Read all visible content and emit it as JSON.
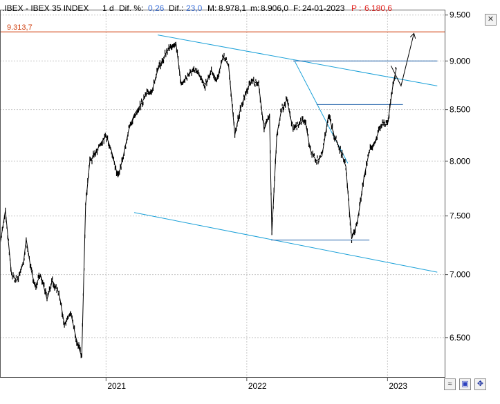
{
  "header": {
    "ticker": ".IBEX - IBEX 35 INDEX",
    "period": "1 d",
    "dif_pct_label": "Dif. %:",
    "dif_pct_value": "0,26",
    "dif_label": "Dif.:",
    "dif_value": "23,0",
    "max_label": "M:",
    "max_value": "8.978,1",
    "min_label": "m:",
    "min_value": "8.906,0",
    "date_label": "F:",
    "date_value": "24-01-2023",
    "p_label": "P :",
    "p_value": "6.180,6"
  },
  "colors": {
    "price": "#000000",
    "trendline": "#1aa0d8",
    "level": "#1f5fa8",
    "resistance": "#d04010",
    "header_blue": "#3a6fd8",
    "header_red": "#e0201c"
  },
  "icons": {
    "corner_top": "close-box-icon",
    "bottom_1": "wave-icon",
    "bottom_2": "floppy-save-icon",
    "bottom_3": "crossed-arrows-icon"
  },
  "chart_data": {
    "type": "line",
    "title": "",
    "xlabel": "",
    "ylabel": "",
    "ylim": [
      6200,
      9560
    ],
    "xlim": [
      "2020-04-01",
      "2023-05-31"
    ],
    "grid": true,
    "legend": "none",
    "y_ticks": [
      {
        "value": 6500,
        "label": "6.500"
      },
      {
        "value": 7000,
        "label": "7.000"
      },
      {
        "value": 7500,
        "label": "7.500"
      },
      {
        "value": 8000,
        "label": "8.000"
      },
      {
        "value": 8500,
        "label": "8.500"
      },
      {
        "value": 9000,
        "label": "9.000"
      },
      {
        "value": 9500,
        "label": "9.500"
      }
    ],
    "x_ticks": [
      {
        "date": "2021-01-01",
        "label": "2021"
      },
      {
        "date": "2022-01-01",
        "label": "2022"
      },
      {
        "date": "2023-01-01",
        "label": "2023"
      }
    ],
    "resistance_level": {
      "value": 9313.7,
      "label": "9.313,7"
    },
    "series": [
      {
        "x": [
          "2020-04-01",
          "2020-04-15",
          "2020-05-01",
          "2020-05-15",
          "2020-06-01",
          "2020-06-08",
          "2020-06-20",
          "2020-07-01",
          "2020-07-15",
          "2020-08-01",
          "2020-08-15",
          "2020-09-01",
          "2020-09-15",
          "2020-10-01",
          "2020-10-15",
          "2020-10-30",
          "2020-11-09",
          "2020-11-20",
          "2020-12-01",
          "2020-12-15",
          "2021-01-01",
          "2021-01-15",
          "2021-02-01",
          "2021-02-15",
          "2021-03-01",
          "2021-03-15",
          "2021-04-01",
          "2021-04-15",
          "2021-05-01",
          "2021-05-15",
          "2021-06-01",
          "2021-06-15",
          "2021-07-01",
          "2021-07-15",
          "2021-08-01",
          "2021-08-15",
          "2021-09-01",
          "2021-09-15",
          "2021-10-01",
          "2021-10-15",
          "2021-11-01",
          "2021-11-15",
          "2021-12-01",
          "2021-12-15",
          "2022-01-01",
          "2022-01-15",
          "2022-02-01",
          "2022-02-15",
          "2022-03-01",
          "2022-03-07",
          "2022-03-20",
          "2022-04-01",
          "2022-04-15",
          "2022-05-01",
          "2022-05-15",
          "2022-06-01",
          "2022-06-15",
          "2022-07-01",
          "2022-07-15",
          "2022-08-01",
          "2022-08-15",
          "2022-09-01",
          "2022-09-15",
          "2022-09-30",
          "2022-10-15",
          "2022-11-01",
          "2022-11-15",
          "2022-12-01",
          "2022-12-15",
          "2023-01-01",
          "2023-01-15",
          "2023-01-24"
        ],
        "y": [
          7250,
          7550,
          7000,
          6950,
          7100,
          7300,
          7050,
          6900,
          7000,
          6800,
          6950,
          6850,
          6600,
          6700,
          6500,
          6350,
          7600,
          8000,
          8050,
          8150,
          8250,
          8100,
          7850,
          8050,
          8300,
          8450,
          8550,
          8650,
          8700,
          8900,
          9050,
          9150,
          9200,
          8750,
          8850,
          8900,
          8850,
          8750,
          8900,
          8800,
          9050,
          8950,
          8250,
          8500,
          8700,
          8800,
          8750,
          8300,
          8450,
          7350,
          8250,
          8500,
          8600,
          8300,
          8350,
          8400,
          8100,
          8000,
          8050,
          8450,
          8250,
          8100,
          7950,
          7300,
          7450,
          7850,
          8100,
          8200,
          8350,
          8350,
          8750,
          8924
        ]
      }
    ],
    "trendlines": [
      {
        "x": [
          "2021-05-15",
          "2023-05-10"
        ],
        "y": [
          9280,
          8740
        ]
      },
      {
        "x": [
          "2021-03-15",
          "2023-05-10"
        ],
        "y": [
          7530,
          7020
        ]
      },
      {
        "x": [
          "2022-05-05",
          "2022-09-20"
        ],
        "y": [
          9000,
          7980
        ]
      }
    ],
    "levels": [
      {
        "x": [
          "2022-05-01",
          "2023-05-10"
        ],
        "y": 9000
      },
      {
        "x": [
          "2022-07-01",
          "2023-02-10"
        ],
        "y": 8550
      },
      {
        "x": [
          "2022-03-05",
          "2022-11-15"
        ],
        "y": 7290
      }
    ],
    "projection": {
      "x": [
        "2023-01-10",
        "2023-02-05",
        "2023-03-10"
      ],
      "y": [
        8950,
        8740,
        9290
      ]
    }
  }
}
